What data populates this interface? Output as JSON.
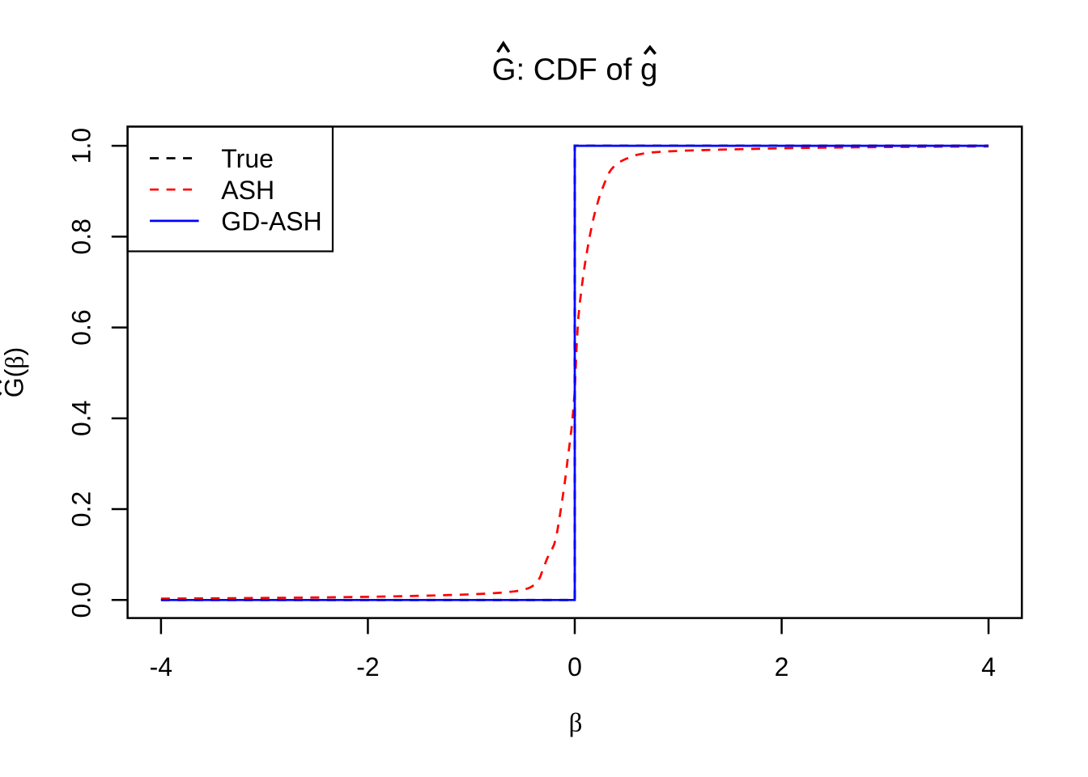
{
  "figure_title": "Ĝ: CDF of ĝ",
  "chart_data": {
    "type": "line",
    "title": {
      "text": "Ĝ: CDF of ĝ",
      "parts": {
        "lead": "G",
        "middle": ": CDF of ",
        "tail": "g"
      },
      "accents": [
        "hat-over-G",
        "hat-over-g"
      ]
    },
    "xlabel": "β",
    "ylabel": {
      "text": "Ĝ(β)",
      "parts": {
        "lead": "G",
        "open": "(",
        "beta": "β",
        "close": ")"
      },
      "accents": [
        "hat-over-G"
      ]
    },
    "xlim": [
      -4,
      4
    ],
    "ylim": [
      0,
      1
    ],
    "x_ticks": [
      -4,
      -2,
      0,
      2,
      4
    ],
    "x_tick_labels": [
      "-4",
      "-2",
      "0",
      "2",
      "4"
    ],
    "y_ticks": [
      0,
      0.2,
      0.4,
      0.6,
      0.8,
      1
    ],
    "y_tick_labels": [
      "0.0",
      "0.2",
      "0.4",
      "0.6",
      "0.8",
      "1.0"
    ],
    "grid": false,
    "legend_position": "topleft",
    "legend": [
      {
        "label": "True",
        "color": "#000000",
        "dashed": true
      },
      {
        "label": "ASH",
        "color": "#FF0000",
        "dashed": true
      },
      {
        "label": "GD-ASH",
        "color": "#0000FF",
        "dashed": false
      }
    ],
    "colors": {
      "true": "#000000",
      "ash": "#FF0000",
      "gd_ash": "#0000FF",
      "axis": "#000000",
      "background": "#FFFFFF"
    },
    "series": [
      {
        "name": "True",
        "kind": "step-cdf",
        "color": "#000000",
        "dashed": true,
        "x": [
          -4,
          0,
          0,
          4
        ],
        "y": [
          0,
          0,
          1,
          1
        ]
      },
      {
        "name": "ASH",
        "kind": "curve",
        "color": "#FF0000",
        "dashed": true,
        "x": [
          -4,
          -3.8,
          -3.6,
          -3.4,
          -3.2,
          -3,
          -2.8,
          -2.6,
          -2.4,
          -2.2,
          -2,
          -1.8,
          -1.6,
          -1.4,
          -1.2,
          -1.132,
          -1.064,
          -0.995,
          -0.927,
          -0.859,
          -0.791,
          -0.723,
          -0.655,
          -0.586,
          -0.518,
          -0.45,
          -0.433,
          -0.417,
          -0.4,
          -0.383,
          -0.367,
          -0.35,
          -0.333,
          -0.317,
          -0.3,
          -0.283,
          -0.267,
          -0.25,
          -0.233,
          -0.217,
          -0.2,
          -0.183,
          -0.167,
          -0.15,
          -0.133,
          -0.117,
          -0.1,
          -0.083,
          -0.067,
          -0.05,
          -0.033,
          -0.017,
          0,
          0.017,
          0.033,
          0.05,
          0.067,
          0.083,
          0.1,
          0.117,
          0.133,
          0.15,
          0.167,
          0.183,
          0.2,
          0.217,
          0.233,
          0.25,
          0.267,
          0.283,
          0.3,
          0.317,
          0.333,
          0.35,
          0.367,
          0.383,
          0.4,
          0.417,
          0.433,
          0.45,
          0.467,
          0.483,
          0.5,
          0.517,
          0.533,
          0.55,
          0.567,
          0.583,
          0.6,
          0.677,
          0.754,
          0.831,
          0.908,
          0.985,
          1.062,
          1.138,
          1.215,
          1.292,
          1.369,
          1.446,
          1.523,
          1.6,
          1.8,
          2,
          2.2,
          2.4,
          2.6,
          2.8,
          3,
          3.2,
          3.4,
          3.6,
          3.8,
          4
        ],
        "y": [
          0.003,
          0.0032,
          0.0035,
          0.0038,
          0.0041,
          0.0045,
          0.0049,
          0.0053,
          0.0058,
          0.0064,
          0.007,
          0.0078,
          0.0087,
          0.0097,
          0.011,
          0.0114,
          0.012,
          0.0125,
          0.0132,
          0.014,
          0.0149,
          0.0159,
          0.0172,
          0.0189,
          0.0211,
          0.0257,
          0.0274,
          0.0294,
          0.032,
          0.0352,
          0.0392,
          0.044,
          0.0515,
          0.0617,
          0.072,
          0.0818,
          0.0914,
          0.0997,
          0.1065,
          0.1133,
          0.1218,
          0.135,
          0.154,
          0.1773,
          0.2022,
          0.2264,
          0.2529,
          0.2821,
          0.3132,
          0.3426,
          0.3743,
          0.4112,
          0.46,
          0.5551,
          0.6179,
          0.6561,
          0.6877,
          0.7159,
          0.7421,
          0.7652,
          0.7865,
          0.8069,
          0.8253,
          0.8421,
          0.8573,
          0.8712,
          0.8838,
          0.8951,
          0.9055,
          0.9151,
          0.9243,
          0.9332,
          0.941,
          0.9469,
          0.9515,
          0.9555,
          0.9588,
          0.9616,
          0.9641,
          0.9662,
          0.9682,
          0.9699,
          0.9716,
          0.9731,
          0.9747,
          0.9762,
          0.9776,
          0.979,
          0.9801,
          0.9835,
          0.9855,
          0.9867,
          0.9877,
          0.9885,
          0.9892,
          0.9898,
          0.9903,
          0.9908,
          0.9913,
          0.9917,
          0.9921,
          0.9925,
          0.9936,
          0.9945,
          0.9953,
          0.9959,
          0.9964,
          0.9968,
          0.9972,
          0.9975,
          0.9978,
          0.9981,
          0.9983,
          0.9985
        ]
      },
      {
        "name": "GD-ASH",
        "kind": "step-cdf",
        "color": "#0000FF",
        "dashed": false,
        "x": [
          -4,
          0,
          0,
          4
        ],
        "y": [
          0,
          0,
          1,
          1
        ]
      }
    ]
  }
}
